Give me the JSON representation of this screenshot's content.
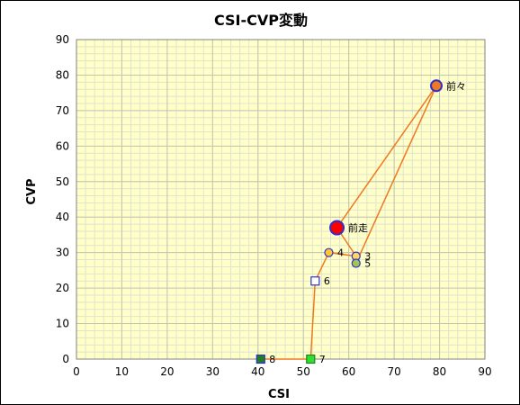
{
  "chart_data": {
    "type": "scatter",
    "title": "CSI-CVP変動",
    "xlabel": "CSI",
    "ylabel": "CVP",
    "xlim": [
      0,
      90
    ],
    "ylim": [
      0,
      90
    ],
    "x_major_ticks": [
      0,
      10,
      20,
      30,
      40,
      50,
      60,
      70,
      80,
      90
    ],
    "y_major_ticks": [
      0,
      10,
      20,
      30,
      40,
      50,
      60,
      70,
      80,
      90
    ],
    "minor_step": 2,
    "grid": true,
    "colors": {
      "plot_bg": "#ffffc8",
      "minor_grid": "#e2e2d0",
      "major_grid": "#c4c4b4",
      "line": "#f07820"
    },
    "points": [
      {
        "label": "前々",
        "x": 79.3,
        "y": 77,
        "marker": "circle",
        "size": "large",
        "fill": "#f07820",
        "stroke": "#3030c8"
      },
      {
        "label": "前走",
        "x": 57.4,
        "y": 37,
        "marker": "circle",
        "size": "xlarge",
        "fill": "#ff0000",
        "stroke": "#3030c8"
      },
      {
        "label": "4",
        "x": 55.6,
        "y": 30,
        "marker": "circle",
        "size": "small",
        "fill": "#ffc830",
        "stroke": "#3030c8"
      },
      {
        "label": "3",
        "x": 61.6,
        "y": 29,
        "marker": "circle",
        "size": "small",
        "fill": "#ffd860",
        "stroke": "#3030c8"
      },
      {
        "label": "5",
        "x": 61.6,
        "y": 27,
        "marker": "circle",
        "size": "small",
        "fill": "#a0c850",
        "stroke": "#3030c8"
      },
      {
        "label": "6",
        "x": 52.6,
        "y": 22,
        "marker": "square",
        "size": "small",
        "fill": "#ffffff",
        "stroke": "#3030c8"
      },
      {
        "label": "7",
        "x": 51.6,
        "y": 0,
        "marker": "square",
        "size": "small",
        "fill": "#30e030",
        "stroke": "#208020"
      },
      {
        "label": "8",
        "x": 40.6,
        "y": 0,
        "marker": "square",
        "size": "small",
        "fill": "#208020",
        "stroke": "#3030c8"
      }
    ],
    "connection_order": [
      "8",
      "7",
      "6",
      "4",
      "3",
      "5",
      "前々",
      "前走",
      "3"
    ]
  }
}
